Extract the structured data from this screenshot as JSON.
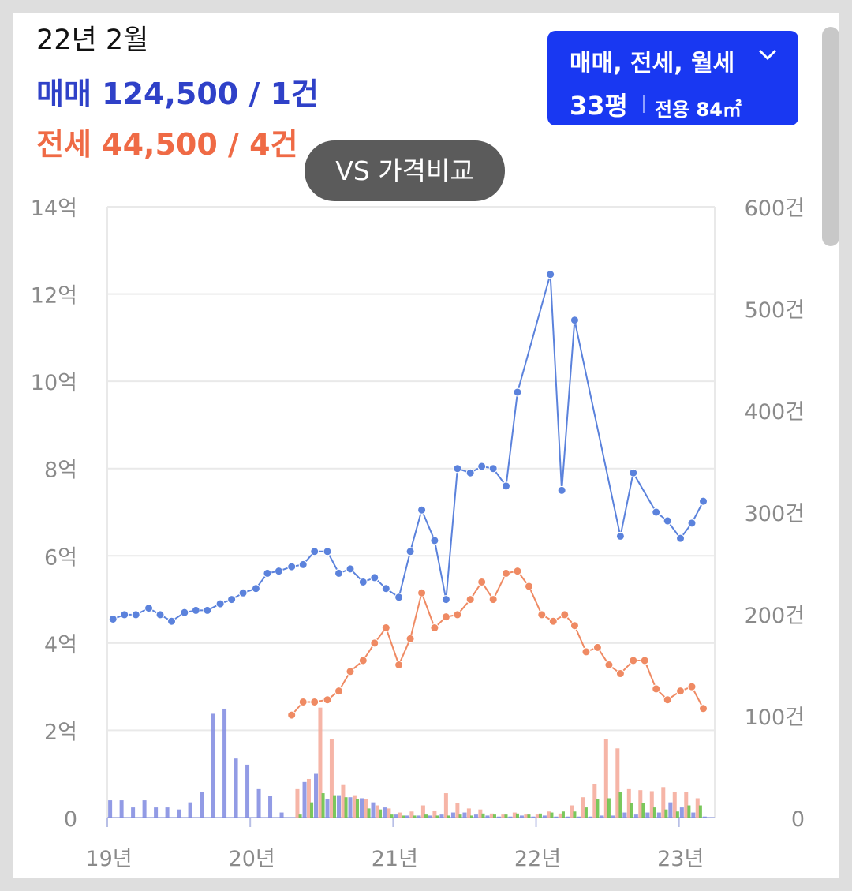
{
  "header": {
    "date": "22년 2월",
    "sale_line": "매매 124,500 / 1건",
    "jeonse_line": "전세 44,500 / 4건"
  },
  "selector": {
    "types": "매매, 전세, 월세",
    "size": "33평",
    "area": "전용 84㎡"
  },
  "vs_button": {
    "label": "VS 가격비교"
  },
  "colors": {
    "sale": "#5b82dc",
    "jeonse": "#ef8a63",
    "sale_volume": "#7f8ae0",
    "jeonse_volume": "#f5a898",
    "monthly_volume": "#6cc24a",
    "selector_bg": "#1938f2",
    "header_sale": "#2f41c8",
    "header_jeonse": "#ef6a45"
  },
  "chart_data": {
    "type": "line",
    "x_tick_labels": [
      "19년",
      "20년",
      "21년",
      "22년",
      "23년"
    ],
    "y_left_tick_labels": [
      "0",
      "2억",
      "4억",
      "6억",
      "8억",
      "10억",
      "12억",
      "14억"
    ],
    "y_left_lim": [
      0,
      14
    ],
    "y_right_tick_labels": [
      "0",
      "100건",
      "200건",
      "300건",
      "400건",
      "500건",
      "600건"
    ],
    "y_right_lim": [
      0,
      600
    ],
    "x_lim": [
      2019.0,
      2023.25
    ],
    "grid": true,
    "series": [
      {
        "key": "sale",
        "kind": "line",
        "axis": "left",
        "points": [
          [
            2019.04,
            4.55
          ],
          [
            2019.12,
            4.65
          ],
          [
            2019.2,
            4.65
          ],
          [
            2019.29,
            4.8
          ],
          [
            2019.37,
            4.65
          ],
          [
            2019.45,
            4.5
          ],
          [
            2019.54,
            4.7
          ],
          [
            2019.62,
            4.75
          ],
          [
            2019.7,
            4.75
          ],
          [
            2019.79,
            4.9
          ],
          [
            2019.87,
            5.0
          ],
          [
            2019.95,
            5.15
          ],
          [
            2020.04,
            5.25
          ],
          [
            2020.12,
            5.6
          ],
          [
            2020.2,
            5.65
          ],
          [
            2020.29,
            5.75
          ],
          [
            2020.37,
            5.8
          ],
          [
            2020.45,
            6.1
          ],
          [
            2020.54,
            6.1
          ],
          [
            2020.62,
            5.6
          ],
          [
            2020.7,
            5.7
          ],
          [
            2020.79,
            5.4
          ],
          [
            2020.87,
            5.5
          ],
          [
            2020.95,
            5.25
          ],
          [
            2021.04,
            5.05
          ],
          [
            2021.12,
            6.1
          ],
          [
            2021.2,
            7.05
          ],
          [
            2021.29,
            6.35
          ],
          [
            2021.37,
            5.0
          ],
          [
            2021.45,
            8.0
          ],
          [
            2021.54,
            7.9
          ],
          [
            2021.62,
            8.05
          ],
          [
            2021.7,
            8.0
          ],
          [
            2021.79,
            7.6
          ],
          [
            2021.87,
            9.75
          ],
          [
            2022.1,
            12.45
          ],
          [
            2022.18,
            7.5
          ],
          [
            2022.27,
            11.4
          ],
          [
            2022.59,
            6.45
          ],
          [
            2022.68,
            7.9
          ],
          [
            2022.84,
            7.0
          ],
          [
            2022.92,
            6.8
          ],
          [
            2023.01,
            6.4
          ],
          [
            2023.09,
            6.75
          ],
          [
            2023.17,
            7.25
          ]
        ]
      },
      {
        "key": "jeonse",
        "kind": "line",
        "axis": "left",
        "points": [
          [
            2020.29,
            2.35
          ],
          [
            2020.37,
            2.65
          ],
          [
            2020.45,
            2.65
          ],
          [
            2020.54,
            2.7
          ],
          [
            2020.62,
            2.9
          ],
          [
            2020.7,
            3.35
          ],
          [
            2020.79,
            3.6
          ],
          [
            2020.87,
            4.0
          ],
          [
            2020.95,
            4.35
          ],
          [
            2021.04,
            3.5
          ],
          [
            2021.12,
            4.1
          ],
          [
            2021.2,
            5.15
          ],
          [
            2021.29,
            4.35
          ],
          [
            2021.37,
            4.6
          ],
          [
            2021.45,
            4.65
          ],
          [
            2021.54,
            5.0
          ],
          [
            2021.62,
            5.4
          ],
          [
            2021.7,
            5.0
          ],
          [
            2021.79,
            5.6
          ],
          [
            2021.87,
            5.65
          ],
          [
            2021.95,
            5.3
          ],
          [
            2022.04,
            4.65
          ],
          [
            2022.12,
            4.5
          ],
          [
            2022.2,
            4.65
          ],
          [
            2022.27,
            4.4
          ],
          [
            2022.35,
            3.8
          ],
          [
            2022.43,
            3.9
          ],
          [
            2022.51,
            3.5
          ],
          [
            2022.59,
            3.3
          ],
          [
            2022.68,
            3.6
          ],
          [
            2022.76,
            3.6
          ],
          [
            2022.84,
            2.95
          ],
          [
            2022.92,
            2.7
          ],
          [
            2023.01,
            2.9
          ],
          [
            2023.09,
            3.0
          ],
          [
            2023.17,
            2.5
          ]
        ]
      },
      {
        "key": "sale_volume",
        "kind": "bar",
        "axis": "right",
        "points": [
          [
            2019.02,
            17
          ],
          [
            2019.1,
            17
          ],
          [
            2019.18,
            10
          ],
          [
            2019.26,
            17
          ],
          [
            2019.34,
            10
          ],
          [
            2019.42,
            10
          ],
          [
            2019.5,
            8
          ],
          [
            2019.58,
            15
          ],
          [
            2019.66,
            25
          ],
          [
            2019.74,
            102
          ],
          [
            2019.82,
            107
          ],
          [
            2019.9,
            58
          ],
          [
            2019.98,
            52
          ],
          [
            2020.06,
            28
          ],
          [
            2020.14,
            21
          ],
          [
            2020.22,
            5
          ],
          [
            2020.3,
            0
          ],
          [
            2020.38,
            35
          ],
          [
            2020.46,
            43
          ],
          [
            2020.54,
            18
          ],
          [
            2020.62,
            22
          ],
          [
            2020.7,
            20
          ],
          [
            2020.78,
            19
          ],
          [
            2020.86,
            15
          ],
          [
            2020.94,
            10
          ],
          [
            2021.02,
            3
          ],
          [
            2021.1,
            2
          ],
          [
            2021.18,
            2
          ],
          [
            2021.26,
            2
          ],
          [
            2021.34,
            3
          ],
          [
            2021.42,
            5
          ],
          [
            2021.5,
            5
          ],
          [
            2021.58,
            3
          ],
          [
            2021.66,
            2
          ],
          [
            2021.74,
            1
          ],
          [
            2021.82,
            1
          ],
          [
            2021.9,
            2
          ],
          [
            2021.98,
            1
          ],
          [
            2022.06,
            2
          ],
          [
            2022.14,
            1
          ],
          [
            2022.22,
            1
          ],
          [
            2022.3,
            1
          ],
          [
            2022.38,
            1
          ],
          [
            2022.46,
            2
          ],
          [
            2022.54,
            2
          ],
          [
            2022.62,
            5
          ],
          [
            2022.7,
            3
          ],
          [
            2022.78,
            5
          ],
          [
            2022.86,
            5
          ],
          [
            2022.94,
            15
          ],
          [
            2023.02,
            10
          ],
          [
            2023.1,
            5
          ],
          [
            2023.18,
            1
          ]
        ]
      },
      {
        "key": "jeonse_volume",
        "kind": "bar",
        "axis": "right",
        "points": [
          [
            2020.33,
            28
          ],
          [
            2020.41,
            38
          ],
          [
            2020.49,
            108
          ],
          [
            2020.57,
            77
          ],
          [
            2020.65,
            32
          ],
          [
            2020.73,
            22
          ],
          [
            2020.81,
            18
          ],
          [
            2020.89,
            12
          ],
          [
            2020.97,
            9
          ],
          [
            2021.05,
            5
          ],
          [
            2021.13,
            6
          ],
          [
            2021.21,
            12
          ],
          [
            2021.29,
            7
          ],
          [
            2021.37,
            24
          ],
          [
            2021.45,
            14
          ],
          [
            2021.53,
            9
          ],
          [
            2021.61,
            8
          ],
          [
            2021.69,
            4
          ],
          [
            2021.77,
            3
          ],
          [
            2021.85,
            5
          ],
          [
            2021.93,
            3
          ],
          [
            2022.01,
            3
          ],
          [
            2022.09,
            6
          ],
          [
            2022.17,
            4
          ],
          [
            2022.25,
            12
          ],
          [
            2022.33,
            20
          ],
          [
            2022.41,
            33
          ],
          [
            2022.49,
            77
          ],
          [
            2022.57,
            68
          ],
          [
            2022.65,
            28
          ],
          [
            2022.73,
            27
          ],
          [
            2022.81,
            26
          ],
          [
            2022.89,
            30
          ],
          [
            2022.97,
            25
          ],
          [
            2023.05,
            25
          ],
          [
            2023.13,
            19
          ]
        ]
      },
      {
        "key": "monthly_volume",
        "kind": "bar",
        "axis": "right",
        "points": [
          [
            2020.35,
            3
          ],
          [
            2020.43,
            15
          ],
          [
            2020.51,
            24
          ],
          [
            2020.59,
            22
          ],
          [
            2020.67,
            20
          ],
          [
            2020.75,
            18
          ],
          [
            2020.83,
            9
          ],
          [
            2020.91,
            8
          ],
          [
            2020.99,
            3
          ],
          [
            2021.07,
            2
          ],
          [
            2021.15,
            2
          ],
          [
            2021.23,
            3
          ],
          [
            2021.31,
            2
          ],
          [
            2021.39,
            2
          ],
          [
            2021.47,
            3
          ],
          [
            2021.55,
            2
          ],
          [
            2021.63,
            4
          ],
          [
            2021.71,
            3
          ],
          [
            2021.79,
            3
          ],
          [
            2021.87,
            4
          ],
          [
            2021.95,
            3
          ],
          [
            2022.03,
            4
          ],
          [
            2022.11,
            5
          ],
          [
            2022.19,
            6
          ],
          [
            2022.27,
            6
          ],
          [
            2022.35,
            10
          ],
          [
            2022.43,
            18
          ],
          [
            2022.51,
            19
          ],
          [
            2022.59,
            25
          ],
          [
            2022.67,
            14
          ],
          [
            2022.75,
            14
          ],
          [
            2022.83,
            10
          ],
          [
            2022.91,
            8
          ],
          [
            2022.99,
            6
          ],
          [
            2023.07,
            12
          ],
          [
            2023.15,
            12
          ]
        ]
      }
    ]
  }
}
